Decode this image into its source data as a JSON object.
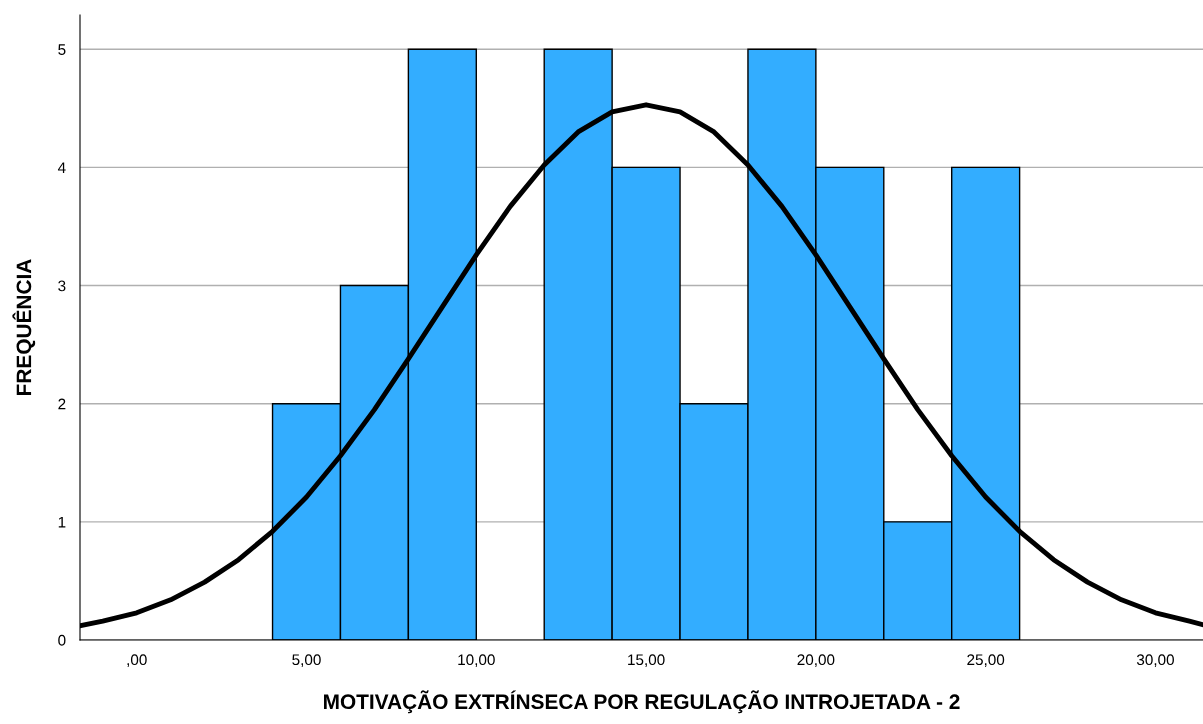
{
  "chart_data": {
    "type": "histogram",
    "xlabel": "MOTIVAÇÃO EXTRÍNSECA POR REGULAÇÃO INTROJETADA - 2",
    "ylabel": "FREQUÊNCIA",
    "series": [
      {
        "color": "#33adff",
        "bins": [
          4,
          6,
          8,
          10,
          12,
          14,
          16,
          18,
          20,
          22,
          24,
          26
        ],
        "values": [
          2,
          3,
          5,
          0,
          5,
          4,
          2,
          5,
          4,
          1,
          4
        ]
      },
      {
        "type": "line",
        "color": "#000000",
        "x": [
          -1.67,
          -1,
          0,
          1,
          2,
          3,
          4,
          5,
          6,
          7,
          8,
          9,
          10,
          11,
          12,
          13,
          14,
          15,
          16,
          17,
          18,
          19,
          20,
          21,
          22,
          23,
          24,
          25,
          26,
          27,
          28,
          29,
          30,
          31,
          31.4
        ],
        "values": [
          0.12,
          0.16,
          0.23,
          0.34,
          0.49,
          0.68,
          0.92,
          1.21,
          1.56,
          1.95,
          2.38,
          2.82,
          3.26,
          3.67,
          4.02,
          4.3,
          4.47,
          4.53,
          4.47,
          4.3,
          4.02,
          3.67,
          3.26,
          2.82,
          2.38,
          1.95,
          1.56,
          1.21,
          0.92,
          0.68,
          0.49,
          0.34,
          0.23,
          0.16,
          0.13
        ]
      }
    ],
    "xlim": [
      -1.67,
      31.4
    ],
    "ylim": [
      0,
      5.29
    ],
    "xticks": [
      {
        "value": 0,
        "label": ",00"
      },
      {
        "value": 5,
        "label": "5,00"
      },
      {
        "value": 10,
        "label": "10,00"
      },
      {
        "value": 15,
        "label": "15,00"
      },
      {
        "value": 20,
        "label": "20,00"
      },
      {
        "value": 25,
        "label": "25,00"
      },
      {
        "value": 30,
        "label": "30,00"
      }
    ],
    "yticks": [
      0,
      1,
      2,
      3,
      4,
      5
    ],
    "grid": "y",
    "legend": false
  }
}
